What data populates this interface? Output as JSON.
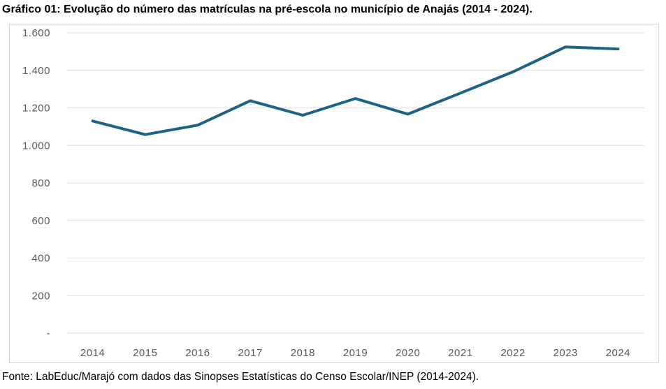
{
  "page": {
    "title": "Gráfico 01: Evolução do número das matrículas na pré-escola no município de Anajás (2014 - 2024).",
    "source": "Fonte: LabEduc/Marajó com dados das Sinopses Estatísticas do Censo Escolar/INEP (2014-2024)."
  },
  "colors": {
    "line": "#1e6386",
    "grid": "#e0e0e0",
    "axis_text": "#595959",
    "frame_border": "#d6d6d6",
    "background": "#ffffff"
  },
  "chart_data": {
    "type": "line",
    "title": "Gráfico 01: Evolução do número das matrículas na pré-escola no município de Anajás (2014 - 2024).",
    "xlabel": "",
    "ylabel": "",
    "categories": [
      "2014",
      "2015",
      "2016",
      "2017",
      "2018",
      "2019",
      "2020",
      "2021",
      "2022",
      "2023",
      "2024"
    ],
    "values": [
      1130,
      1058,
      1108,
      1238,
      1161,
      1250,
      1167,
      1279,
      1392,
      1525,
      1514
    ],
    "ylim": [
      0,
      1600
    ],
    "y_ticks": [
      {
        "value": 0,
        "label": "-"
      },
      {
        "value": 200,
        "label": "200"
      },
      {
        "value": 400,
        "label": "400"
      },
      {
        "value": 600,
        "label": "600"
      },
      {
        "value": 800,
        "label": "800"
      },
      {
        "value": 1000,
        "label": "1.000"
      },
      {
        "value": 1200,
        "label": "1.200"
      },
      {
        "value": 1400,
        "label": "1.400"
      },
      {
        "value": 1600,
        "label": "1.600"
      }
    ],
    "grid": true,
    "legend": "none",
    "line_width": 4
  }
}
